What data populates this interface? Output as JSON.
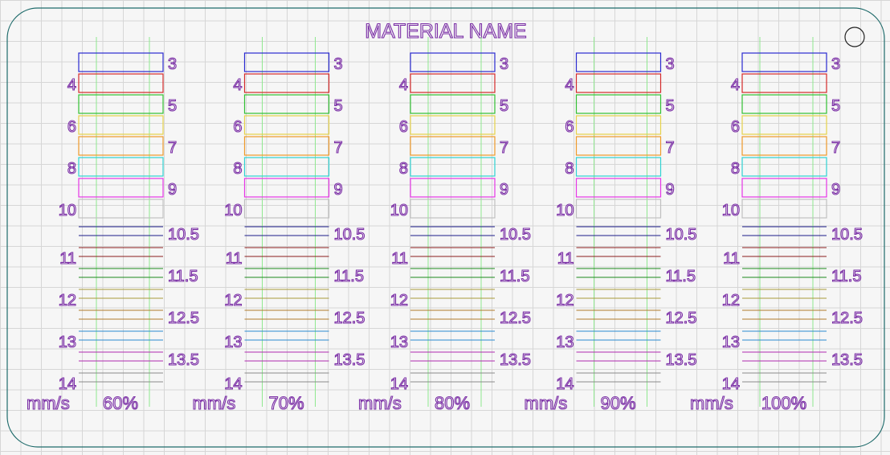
{
  "title": "MATERIAL NAME",
  "colors": {
    "plate": "#1f6b6b",
    "text": "#7b2fa6",
    "guide": "#8fe88f"
  },
  "units_label": "mm/s",
  "columns": [
    {
      "percent_label": "60%"
    },
    {
      "percent_label": "70%"
    },
    {
      "percent_label": "80%"
    },
    {
      "percent_label": "90%"
    },
    {
      "percent_label": "100%"
    }
  ],
  "boxes": [
    {
      "label": "3",
      "side": "right",
      "color": "#2a2ad0"
    },
    {
      "label": "4",
      "side": "left",
      "color": "#d42a2a"
    },
    {
      "label": "5",
      "side": "right",
      "color": "#33c033"
    },
    {
      "label": "6",
      "side": "left",
      "color": "#e6d24a"
    },
    {
      "label": "7",
      "side": "right",
      "color": "#ee9a2a"
    },
    {
      "label": "8",
      "side": "left",
      "color": "#30d2d2"
    },
    {
      "label": "9",
      "side": "right",
      "color": "#e636e6"
    },
    {
      "label": "10",
      "side": "left",
      "color": "#c0c0c0"
    }
  ],
  "lines": [
    {
      "label": "10.5",
      "side": "right",
      "color": "#1c1c8a"
    },
    {
      "label": "11",
      "side": "left",
      "color": "#8a1c1c"
    },
    {
      "label": "11.5",
      "side": "right",
      "color": "#1c8a1c"
    },
    {
      "label": "12",
      "side": "left",
      "color": "#a89a3a"
    },
    {
      "label": "12.5",
      "side": "right",
      "color": "#b07a2a"
    },
    {
      "label": "13",
      "side": "left",
      "color": "#2a8ad0"
    },
    {
      "label": "13.5",
      "side": "right",
      "color": "#b02ab0"
    },
    {
      "label": "14",
      "side": "left",
      "color": "#8a8a8a"
    }
  ]
}
